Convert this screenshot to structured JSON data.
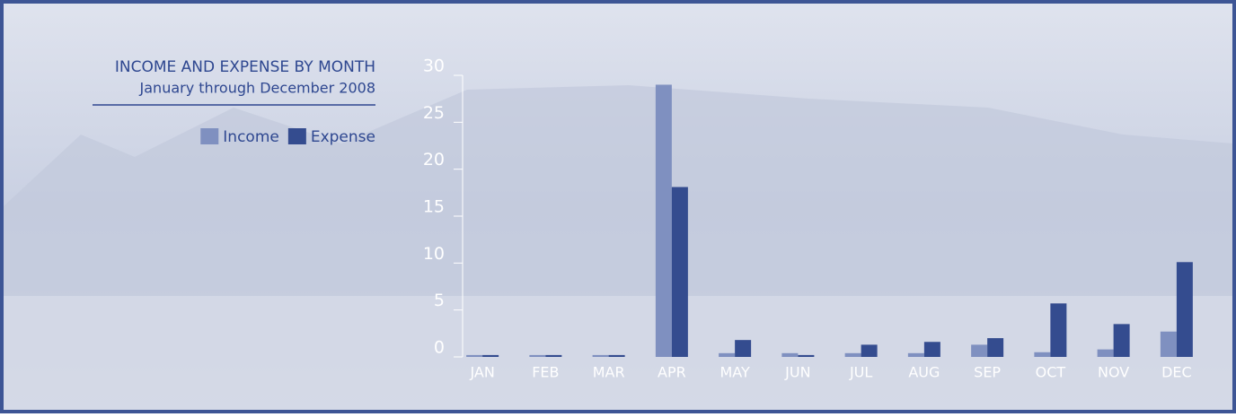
{
  "chart_data": {
    "type": "bar",
    "title": "INCOME AND EXPENSE BY MONTH",
    "subtitle": "January through December 2008",
    "categories": [
      "JAN",
      "FEB",
      "MAR",
      "APR",
      "MAY",
      "JUN",
      "JUL",
      "AUG",
      "SEP",
      "OCT",
      "NOV",
      "DEC"
    ],
    "series": [
      {
        "name": "Income",
        "color": "#7f90c0",
        "values": [
          0.2,
          0.2,
          0.2,
          29,
          0.4,
          0.4,
          0.4,
          0.4,
          1.3,
          0.5,
          0.8,
          2.7
        ]
      },
      {
        "name": "Expense",
        "color": "#344c8f",
        "values": [
          0.2,
          0.2,
          0.2,
          18.1,
          1.8,
          0.2,
          1.3,
          1.6,
          2.0,
          5.7,
          3.5,
          10.1
        ]
      }
    ],
    "ylim": [
      0,
      30
    ],
    "yticks": [
      0,
      5,
      10,
      15,
      20,
      25,
      30
    ],
    "grid": false
  }
}
